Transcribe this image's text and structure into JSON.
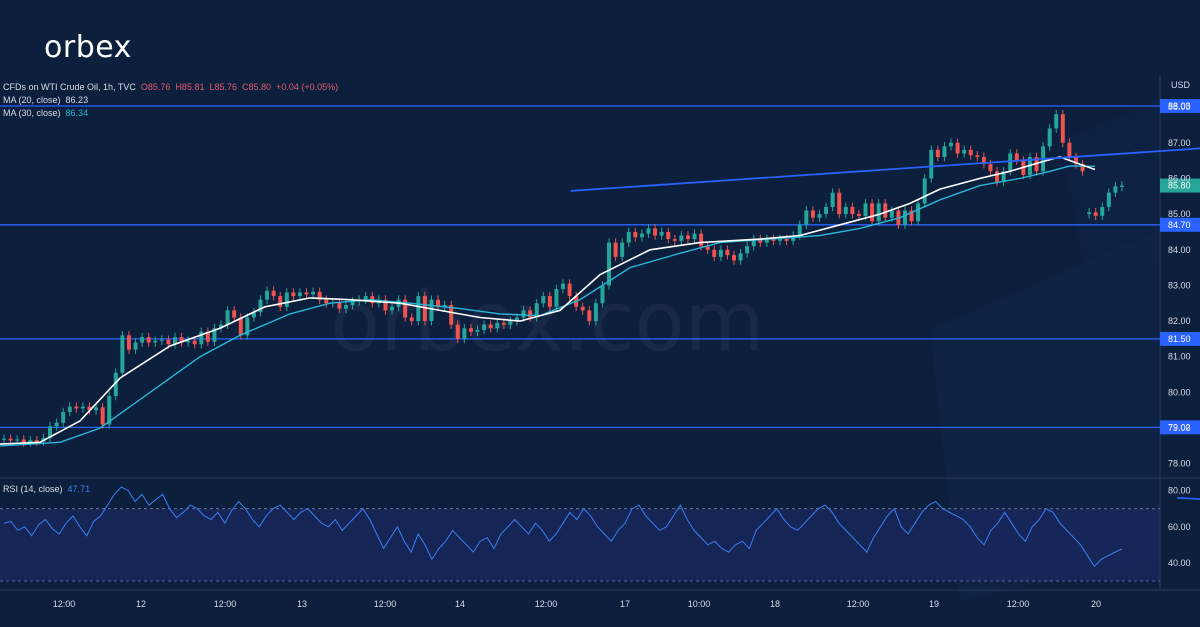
{
  "brand": {
    "logo_text": "orbex",
    "watermark": "orbex.com"
  },
  "legend": {
    "symbol": "CFDs on WTI Crude Oil, 1h, TVC",
    "open": "O85.76",
    "high": "H85.81",
    "low": "L85.76",
    "close": "C85.80",
    "change": "+0.04 (+0.05%)",
    "ma20_label": "MA (20, close)",
    "ma20_value": "86.23",
    "ma30_label": "MA (30, close)",
    "ma30_value": "86.34",
    "rsi_label": "RSI (14, close)",
    "rsi_value": "47.71"
  },
  "colors": {
    "background": "#0c1f3d",
    "up": "#26a69a",
    "down": "#ef5350",
    "ma20": "#ffffff",
    "ma30": "#28b6d8",
    "level": "#2962ff",
    "rsi": "#3d7ef0"
  },
  "chart_data": [
    {
      "type": "candlestick",
      "currency": "USD",
      "ylim": [
        77.6,
        88.9
      ],
      "yticks": [
        "78.00",
        "79.00",
        "80.00",
        "81.00",
        "82.00",
        "83.00",
        "84.00",
        "85.00",
        "86.00",
        "87.00",
        "88.00"
      ],
      "x_ticks": [
        "12:00",
        "12",
        "12:00",
        "13",
        "12:00",
        "14",
        "12:00",
        "17",
        "10:00",
        "18",
        "12:00",
        "19",
        "12:00",
        "20"
      ],
      "levels": [
        "88.03",
        "84.70",
        "81.50",
        "79.02"
      ],
      "highlighted_price": "85.80",
      "candles": [
        [
          78.67,
          78.7
        ],
        [
          78.7,
          78.65
        ],
        [
          78.65,
          78.68
        ],
        [
          78.68,
          78.6
        ],
        [
          78.6,
          78.66
        ],
        [
          78.66,
          78.62
        ],
        [
          78.62,
          78.72
        ],
        [
          78.72,
          79.05
        ],
        [
          79.05,
          79.15
        ],
        [
          79.15,
          79.45
        ],
        [
          79.45,
          79.6
        ],
        [
          79.6,
          79.55
        ],
        [
          79.55,
          79.6
        ],
        [
          79.6,
          79.5
        ],
        [
          79.5,
          79.58
        ],
        [
          79.58,
          79.1
        ],
        [
          79.1,
          79.9
        ],
        [
          79.9,
          80.55
        ],
        [
          80.55,
          81.6
        ],
        [
          81.6,
          81.2
        ],
        [
          81.2,
          81.4
        ],
        [
          81.4,
          81.55
        ],
        [
          81.55,
          81.4
        ],
        [
          81.4,
          81.45
        ],
        [
          81.45,
          81.48
        ],
        [
          81.48,
          81.35
        ],
        [
          81.35,
          81.55
        ],
        [
          81.55,
          81.4
        ],
        [
          81.4,
          81.45
        ],
        [
          81.45,
          81.35
        ],
        [
          81.35,
          81.7
        ],
        [
          81.7,
          81.42
        ],
        [
          81.42,
          81.8
        ],
        [
          81.8,
          81.9
        ],
        [
          81.9,
          82.3
        ],
        [
          82.3,
          82.1
        ],
        [
          82.1,
          81.6
        ],
        [
          81.6,
          82.1
        ],
        [
          82.1,
          82.25
        ],
        [
          82.25,
          82.6
        ],
        [
          82.6,
          82.85
        ],
        [
          82.85,
          82.7
        ],
        [
          82.7,
          82.4
        ],
        [
          82.4,
          82.8
        ],
        [
          82.8,
          82.7
        ],
        [
          82.7,
          82.8
        ],
        [
          82.8,
          82.75
        ],
        [
          82.75,
          82.82
        ],
        [
          82.82,
          82.6
        ],
        [
          82.6,
          82.5
        ],
        [
          82.5,
          82.52
        ],
        [
          82.52,
          82.35
        ],
        [
          82.35,
          82.45
        ],
        [
          82.45,
          82.55
        ],
        [
          82.55,
          82.6
        ],
        [
          82.6,
          82.7
        ],
        [
          82.7,
          82.5
        ],
        [
          82.5,
          82.6
        ],
        [
          82.6,
          82.3
        ],
        [
          82.3,
          82.4
        ],
        [
          82.4,
          82.6
        ],
        [
          82.6,
          82.1
        ],
        [
          82.1,
          82.0
        ],
        [
          82.0,
          82.7
        ],
        [
          82.7,
          82.0
        ],
        [
          82.0,
          82.6
        ],
        [
          82.6,
          82.4
        ],
        [
          82.4,
          82.45
        ],
        [
          82.45,
          81.9
        ],
        [
          81.9,
          81.5
        ],
        [
          81.5,
          81.8
        ],
        [
          81.8,
          81.7
        ],
        [
          81.7,
          81.75
        ],
        [
          81.75,
          81.9
        ],
        [
          81.9,
          81.8
        ],
        [
          81.8,
          81.95
        ],
        [
          81.95,
          81.9
        ],
        [
          81.9,
          82.0
        ],
        [
          82.0,
          82.1
        ],
        [
          82.1,
          82.3
        ],
        [
          82.3,
          82.1
        ],
        [
          82.1,
          82.5
        ],
        [
          82.5,
          82.7
        ],
        [
          82.7,
          82.4
        ],
        [
          82.4,
          82.9
        ],
        [
          82.9,
          83.05
        ],
        [
          83.05,
          82.7
        ],
        [
          82.7,
          82.4
        ],
        [
          82.4,
          82.3
        ],
        [
          82.3,
          82.0
        ],
        [
          82.0,
          82.5
        ],
        [
          82.5,
          83.0
        ],
        [
          83.0,
          84.2
        ],
        [
          84.2,
          83.8
        ],
        [
          83.8,
          84.2
        ],
        [
          84.2,
          84.5
        ],
        [
          84.5,
          84.35
        ],
        [
          84.35,
          84.45
        ],
        [
          84.45,
          84.6
        ],
        [
          84.6,
          84.4
        ],
        [
          84.4,
          84.5
        ],
        [
          84.5,
          84.3
        ],
        [
          84.3,
          84.25
        ],
        [
          84.25,
          84.4
        ],
        [
          84.4,
          84.3
        ],
        [
          84.3,
          84.45
        ],
        [
          84.45,
          84.1
        ],
        [
          84.1,
          84.0
        ],
        [
          84.0,
          83.8
        ],
        [
          83.8,
          84.0
        ],
        [
          84.0,
          83.85
        ],
        [
          83.85,
          83.7
        ],
        [
          83.7,
          83.9
        ],
        [
          83.9,
          84.1
        ],
        [
          84.1,
          84.3
        ],
        [
          84.3,
          84.2
        ],
        [
          84.2,
          84.3
        ],
        [
          84.3,
          84.25
        ],
        [
          84.25,
          84.3
        ],
        [
          84.3,
          84.25
        ],
        [
          84.25,
          84.4
        ],
        [
          84.4,
          84.7
        ],
        [
          84.7,
          85.1
        ],
        [
          85.1,
          84.9
        ],
        [
          84.9,
          85.0
        ],
        [
          85.0,
          85.2
        ],
        [
          85.2,
          85.6
        ],
        [
          85.6,
          85.0
        ],
        [
          85.0,
          85.2
        ],
        [
          85.2,
          85.0
        ],
        [
          85.0,
          84.95
        ],
        [
          84.95,
          85.3
        ],
        [
          85.3,
          84.8
        ],
        [
          84.8,
          85.3
        ],
        [
          85.3,
          84.9
        ],
        [
          84.9,
          85.1
        ],
        [
          85.1,
          84.7
        ],
        [
          84.7,
          85.1
        ],
        [
          85.1,
          84.8
        ],
        [
          84.8,
          85.3
        ],
        [
          85.3,
          86.0
        ],
        [
          86.0,
          86.8
        ],
        [
          86.8,
          86.6
        ],
        [
          86.6,
          86.9
        ],
        [
          86.9,
          87.0
        ],
        [
          87.0,
          86.7
        ],
        [
          86.7,
          86.8
        ],
        [
          86.8,
          86.65
        ],
        [
          86.65,
          86.6
        ],
        [
          86.6,
          86.4
        ],
        [
          86.4,
          86.2
        ],
        [
          86.2,
          85.9
        ],
        [
          85.9,
          86.2
        ],
        [
          86.2,
          86.7
        ],
        [
          86.7,
          86.5
        ],
        [
          86.5,
          86.1
        ],
        [
          86.1,
          86.6
        ],
        [
          86.6,
          86.2
        ],
        [
          86.2,
          86.9
        ],
        [
          86.9,
          87.4
        ],
        [
          87.4,
          87.8
        ],
        [
          87.8,
          87.0
        ],
        [
          87.0,
          86.6
        ],
        [
          86.6,
          86.4
        ],
        [
          86.4,
          86.2
        ],
        [
          85.0,
          85.05
        ],
        [
          85.05,
          84.95
        ],
        [
          84.95,
          85.2
        ],
        [
          85.2,
          85.6
        ],
        [
          85.6,
          85.78
        ],
        [
          85.76,
          85.8
        ]
      ],
      "ma20_line": [
        [
          0,
          78.55
        ],
        [
          40,
          78.6
        ],
        [
          80,
          79.2
        ],
        [
          120,
          80.4
        ],
        [
          170,
          81.3
        ],
        [
          220,
          81.8
        ],
        [
          265,
          82.4
        ],
        [
          310,
          82.65
        ],
        [
          350,
          82.6
        ],
        [
          400,
          82.5
        ],
        [
          440,
          82.3
        ],
        [
          480,
          82.1
        ],
        [
          520,
          82.0
        ],
        [
          560,
          82.3
        ],
        [
          600,
          83.3
        ],
        [
          650,
          84.0
        ],
        [
          700,
          84.2
        ],
        [
          760,
          84.3
        ],
        [
          800,
          84.4
        ],
        [
          840,
          84.7
        ],
        [
          880,
          85.0
        ],
        [
          910,
          85.3
        ],
        [
          940,
          85.7
        ],
        [
          980,
          86.0
        ],
        [
          1010,
          86.2
        ],
        [
          1040,
          86.45
        ],
        [
          1060,
          86.6
        ],
        [
          1080,
          86.4
        ],
        [
          1095,
          86.25
        ]
      ],
      "ma30_line": [
        [
          0,
          78.5
        ],
        [
          60,
          78.6
        ],
        [
          100,
          79.0
        ],
        [
          150,
          80.0
        ],
        [
          200,
          81.0
        ],
        [
          240,
          81.6
        ],
        [
          290,
          82.2
        ],
        [
          330,
          82.5
        ],
        [
          370,
          82.6
        ],
        [
          410,
          82.5
        ],
        [
          460,
          82.35
        ],
        [
          500,
          82.2
        ],
        [
          540,
          82.15
        ],
        [
          580,
          82.6
        ],
        [
          630,
          83.5
        ],
        [
          680,
          83.9
        ],
        [
          720,
          84.2
        ],
        [
          770,
          84.3
        ],
        [
          820,
          84.4
        ],
        [
          860,
          84.6
        ],
        [
          900,
          84.9
        ],
        [
          940,
          85.4
        ],
        [
          980,
          85.8
        ],
        [
          1020,
          86.0
        ],
        [
          1050,
          86.2
        ],
        [
          1070,
          86.35
        ],
        [
          1095,
          86.34
        ]
      ],
      "trend_line": [
        [
          86.15,
          85.65
        ],
        [
          186.5,
          86.9
        ]
      ]
    },
    {
      "type": "line",
      "series_name": "RSI (14, close)",
      "ylim": [
        25,
        87
      ],
      "yticks": [
        "40.00",
        "60.00",
        "80.00"
      ],
      "bands": [
        30,
        70
      ],
      "values": [
        62,
        63,
        58,
        60,
        55,
        61,
        64,
        59,
        56,
        62,
        66,
        60,
        55,
        63,
        66,
        72,
        78,
        82,
        80,
        74,
        78,
        72,
        75,
        78,
        70,
        65,
        68,
        72,
        70,
        66,
        64,
        68,
        62,
        69,
        74,
        70,
        64,
        60,
        66,
        70,
        72,
        68,
        64,
        68,
        70,
        66,
        62,
        60,
        64,
        58,
        62,
        66,
        70,
        64,
        56,
        48,
        54,
        60,
        52,
        46,
        56,
        50,
        42,
        48,
        52,
        58,
        54,
        50,
        46,
        52,
        54,
        48,
        56,
        60,
        64,
        60,
        56,
        62,
        58,
        52,
        56,
        62,
        68,
        64,
        70,
        66,
        60,
        56,
        52,
        58,
        62,
        70,
        72,
        66,
        62,
        58,
        60,
        66,
        72,
        64,
        58,
        54,
        50,
        52,
        48,
        46,
        50,
        52,
        48,
        58,
        62,
        66,
        70,
        64,
        60,
        58,
        62,
        66,
        70,
        72,
        68,
        62,
        58,
        54,
        50,
        46,
        54,
        60,
        66,
        70,
        60,
        56,
        62,
        68,
        72,
        74,
        70,
        68,
        66,
        64,
        60,
        54,
        50,
        58,
        62,
        68,
        62,
        56,
        52,
        60,
        64,
        70,
        68,
        62,
        58,
        54,
        50,
        44,
        38,
        42,
        44,
        46,
        47.71
      ],
      "divergence_line": [
        [
          170,
          76
        ],
        [
          191,
          72
        ]
      ]
    }
  ]
}
